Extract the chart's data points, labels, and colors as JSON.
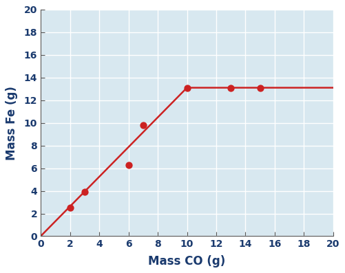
{
  "scatter_x": [
    2,
    3,
    6,
    7,
    10,
    13,
    15
  ],
  "scatter_y": [
    2.5,
    3.9,
    6.3,
    9.8,
    13.1,
    13.1,
    13.1
  ],
  "line_x": [
    0,
    10,
    20
  ],
  "line_y": [
    0,
    13.1,
    13.1
  ],
  "dot_color": "#cc2222",
  "line_color": "#cc2222",
  "xlabel": "Mass CO (g)",
  "ylabel": "Mass Fe (g)",
  "xlim": [
    0,
    20
  ],
  "ylim": [
    0,
    20
  ],
  "xticks": [
    0,
    2,
    4,
    6,
    8,
    10,
    12,
    14,
    16,
    18,
    20
  ],
  "yticks": [
    0,
    2,
    4,
    6,
    8,
    10,
    12,
    14,
    16,
    18,
    20
  ],
  "background_color": "#d8e8f0",
  "label_color": "#1a3a6e",
  "tick_color": "#1a3a6e",
  "xlabel_fontsize": 12,
  "ylabel_fontsize": 12,
  "tick_fontsize": 10,
  "grid_color": "#ffffff",
  "spine_color": "#555555",
  "dot_size": 55,
  "line_width": 1.8
}
